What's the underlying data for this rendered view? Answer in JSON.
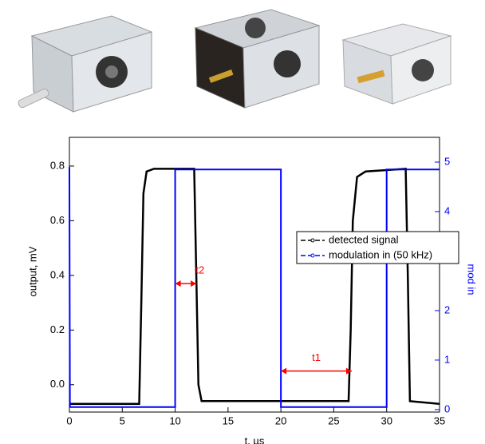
{
  "chart_data": {
    "type": "line",
    "xlabel": "t, µs",
    "ylabel": "output, mV",
    "y2label": "mod in",
    "xlim": [
      0,
      35
    ],
    "xticks": [
      0,
      5,
      10,
      15,
      20,
      25,
      30,
      35
    ],
    "ylim": [
      -0.1,
      0.905
    ],
    "yticks": [
      {
        "value": 0,
        "label": "0.0"
      },
      0.2,
      0.4,
      0.6,
      0.8
    ],
    "y2lim": [
      -0.05,
      5.5
    ],
    "y2ticks": [
      0,
      1,
      2,
      3,
      4,
      5
    ],
    "legend": "right",
    "series": [
      {
        "name": "detected signal",
        "color": "#000000",
        "x": [
          0,
          6.6,
          6.8,
          7.0,
          7.3,
          8,
          11.8,
          12.0,
          12.2,
          12.5,
          26.4,
          26.6,
          26.8,
          27.2,
          28,
          31.8,
          32.0,
          32.2,
          35
        ],
        "values": [
          -0.07,
          -0.07,
          0.3,
          0.7,
          0.78,
          0.79,
          0.79,
          0.4,
          0.0,
          -0.06,
          -0.06,
          0.2,
          0.6,
          0.76,
          0.78,
          0.79,
          0.4,
          -0.06,
          -0.07
        ]
      },
      {
        "name": "modulation in (50 kHz)",
        "color": "#0000ff",
        "axis": "y2",
        "x": [
          0,
          0.05,
          10,
          10,
          20,
          20,
          30,
          30,
          35
        ],
        "values": [
          4.9,
          0.05,
          0.05,
          4.85,
          4.85,
          0.05,
          0.05,
          4.85,
          4.85
        ]
      }
    ],
    "annotations": [
      {
        "text": "t2",
        "color": "#ff0000",
        "x": [
          10,
          12
        ],
        "y": 0.37
      },
      {
        "text": "t1",
        "color": "#ff0000",
        "x": [
          20,
          26.7
        ],
        "y": 0.05
      }
    ]
  }
}
